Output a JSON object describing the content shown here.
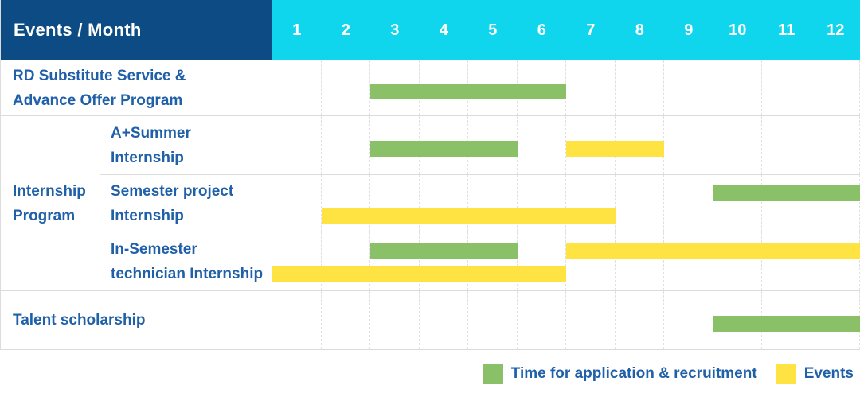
{
  "header": {
    "label": "Events / Month",
    "months": [
      "1",
      "2",
      "3",
      "4",
      "5",
      "6",
      "7",
      "8",
      "9",
      "10",
      "11",
      "12"
    ]
  },
  "colors": {
    "navy": "#0D4B85",
    "cyan": "#0FD6ED",
    "green": "#8AC168",
    "yellow": "#FFE342",
    "text_blue": "#1F60A8"
  },
  "chart_data": {
    "type": "gantt",
    "axis": {
      "unit": "month",
      "min": 1,
      "max": 12
    },
    "bar_types": {
      "recruitment": "Time for application & recruitment",
      "event": "Events"
    },
    "rows": [
      {
        "group": "",
        "label": "RD Substitute Service &\nAdvance Offer Program",
        "tracks": [
          [
            {
              "type": "recruitment",
              "start": 3,
              "end": 6
            }
          ]
        ]
      },
      {
        "group": "Internship\nProgram",
        "label": "A+Summer\nInternship",
        "tracks": [
          [
            {
              "type": "recruitment",
              "start": 3,
              "end": 5
            },
            {
              "type": "event",
              "start": 7,
              "end": 8
            }
          ]
        ]
      },
      {
        "group": "Internship\nProgram",
        "label": "Semester project\nInternship",
        "tracks": [
          [
            {
              "type": "recruitment",
              "start": 10,
              "end": 12
            }
          ],
          [
            {
              "type": "event",
              "start": 2,
              "end": 7
            }
          ]
        ]
      },
      {
        "group": "Internship\nProgram",
        "label": "In-Semester\ntechnician Internship",
        "tracks": [
          [
            {
              "type": "recruitment",
              "start": 3,
              "end": 5
            },
            {
              "type": "event",
              "start": 7,
              "end": 12
            }
          ],
          [
            {
              "type": "event",
              "start": 1,
              "end": 6
            }
          ]
        ]
      },
      {
        "group": "",
        "label": "Talent scholarship",
        "tracks": [
          [
            {
              "type": "recruitment",
              "start": 10,
              "end": 12
            }
          ]
        ]
      }
    ]
  },
  "legend": {
    "items": [
      {
        "type": "recruitment",
        "label": "Time for application & recruitment"
      },
      {
        "type": "event",
        "label": "Events"
      }
    ]
  }
}
